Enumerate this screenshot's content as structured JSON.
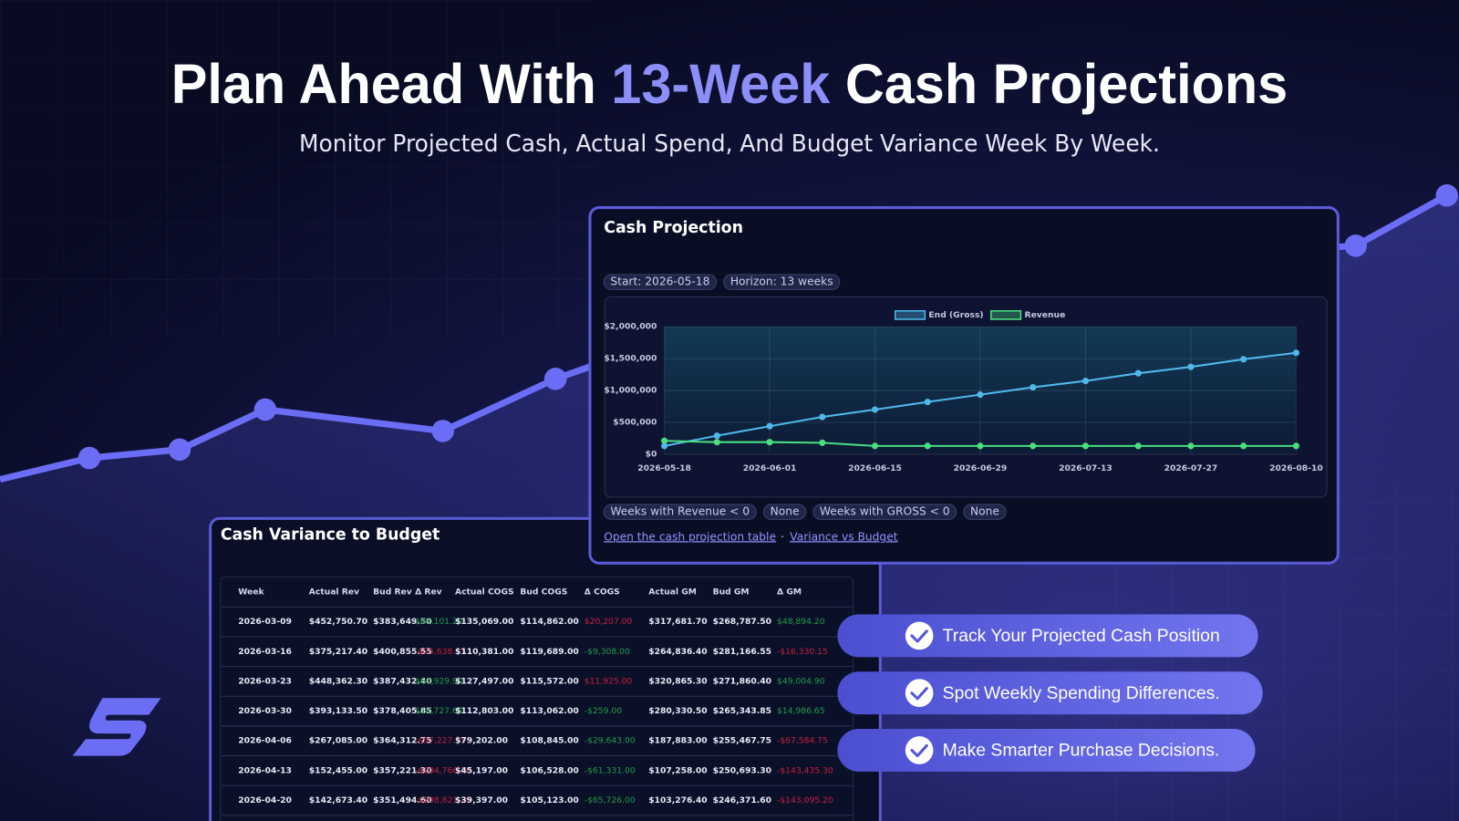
{
  "header": {
    "title_start": "Plan Ahead With",
    "title_highlight": "13-Week",
    "title_end": "Cash Projections",
    "subtitle": "Monitor Projected Cash, Actual Spend, And Budget Variance Week By Week."
  },
  "projection": {
    "title": "Cash Projection",
    "badges": [
      "Start: 2026-05-18",
      "Horizon: 13 weeks"
    ],
    "chart_data": {
      "type": "line",
      "categories": [
        "2026-05-18",
        null,
        "2026-06-01",
        null,
        "2026-06-15",
        null,
        "2026-06-29",
        null,
        "2026-07-13",
        null,
        "2026-07-27",
        null,
        "2026-08-10"
      ],
      "series": [
        {
          "name": "End (Gross)",
          "color": "#4fb8ea",
          "values": [
            130000,
            290000,
            440000,
            585000,
            700000,
            820000,
            935000,
            1050000,
            1150000,
            1270000,
            1370000,
            1490000,
            1590000
          ]
        },
        {
          "name": "Revenue",
          "color": "#4ade80",
          "values": [
            210000,
            190000,
            190000,
            180000,
            130000,
            130000,
            130000,
            130000,
            130000,
            130000,
            130000,
            130000,
            130000
          ]
        }
      ],
      "ylim": [
        0,
        2000000
      ],
      "yticks": [
        {
          "value": 0,
          "label": "$0"
        },
        {
          "value": 500000,
          "label": "$500,000"
        },
        {
          "value": 1000000,
          "label": "$1,000,000"
        },
        {
          "value": 1500000,
          "label": "$1,500,000"
        },
        {
          "value": 2000000,
          "label": "$2,000,000"
        }
      ],
      "grid": true,
      "legend": "top"
    },
    "stats": [
      "Weeks with Revenue < 0",
      "None",
      "Weeks with GROSS < 0",
      "None"
    ],
    "links": {
      "table": "Open the cash projection table",
      "separator": "·",
      "variance": "Variance vs Budget"
    }
  },
  "variance": {
    "title": "Cash Variance to Budget",
    "table": {
      "columns": [
        "Week",
        "Actual Rev",
        "Bud Rev",
        "Δ Rev",
        "Actual COGS",
        "Bud COGS",
        "Δ COGS",
        "Actual GM",
        "Bud GM",
        "Δ GM"
      ],
      "rows": [
        [
          "2026-03-09",
          "$452,750.70",
          "$383,649.50",
          "$69,101.20",
          "$135,069.00",
          "$114,862.00",
          "$20,207.00",
          "$317,681.70",
          "$268,787.50",
          "$48,894.20"
        ],
        [
          "2026-03-16",
          "$375,217.40",
          "$400,855.55",
          "-$25,638.15",
          "$110,381.00",
          "$119,689.00",
          "-$9,308.00",
          "$264,836.40",
          "$281,166.55",
          "-$16,330.15"
        ],
        [
          "2026-03-23",
          "$448,362.30",
          "$387,432.40",
          "$60,929.90",
          "$127,497.00",
          "$115,572.00",
          "$11,925.00",
          "$320,865.30",
          "$271,860.40",
          "$49,004.90"
        ],
        [
          "2026-03-30",
          "$393,133.50",
          "$378,405.85",
          "$14,727.65",
          "$112,803.00",
          "$113,062.00",
          "-$259.00",
          "$280,330.50",
          "$265,343.85",
          "$14,986.65"
        ],
        [
          "2026-04-06",
          "$267,085.00",
          "$364,312.75",
          "-$97,227.75",
          "$79,202.00",
          "$108,845.00",
          "-$29,643.00",
          "$187,883.00",
          "$255,467.75",
          "-$67,584.75"
        ],
        [
          "2026-04-13",
          "$152,455.00",
          "$357,221.30",
          "-$204,766.30",
          "$45,197.00",
          "$106,528.00",
          "-$61,331.00",
          "$107,258.00",
          "$250,693.30",
          "-$143,435.30"
        ],
        [
          "2026-04-20",
          "$142,673.40",
          "$351,494.60",
          "-$208,821.20",
          "$39,397.00",
          "$105,123.00",
          "-$65,726.00",
          "$103,276.40",
          "$246,371.60",
          "-$143,095.20"
        ]
      ]
    }
  },
  "features": [
    "Track Your Projected Cash Position",
    "Spot Weekly Spending Differences.",
    "Make Smarter Purchase Decisions."
  ]
}
